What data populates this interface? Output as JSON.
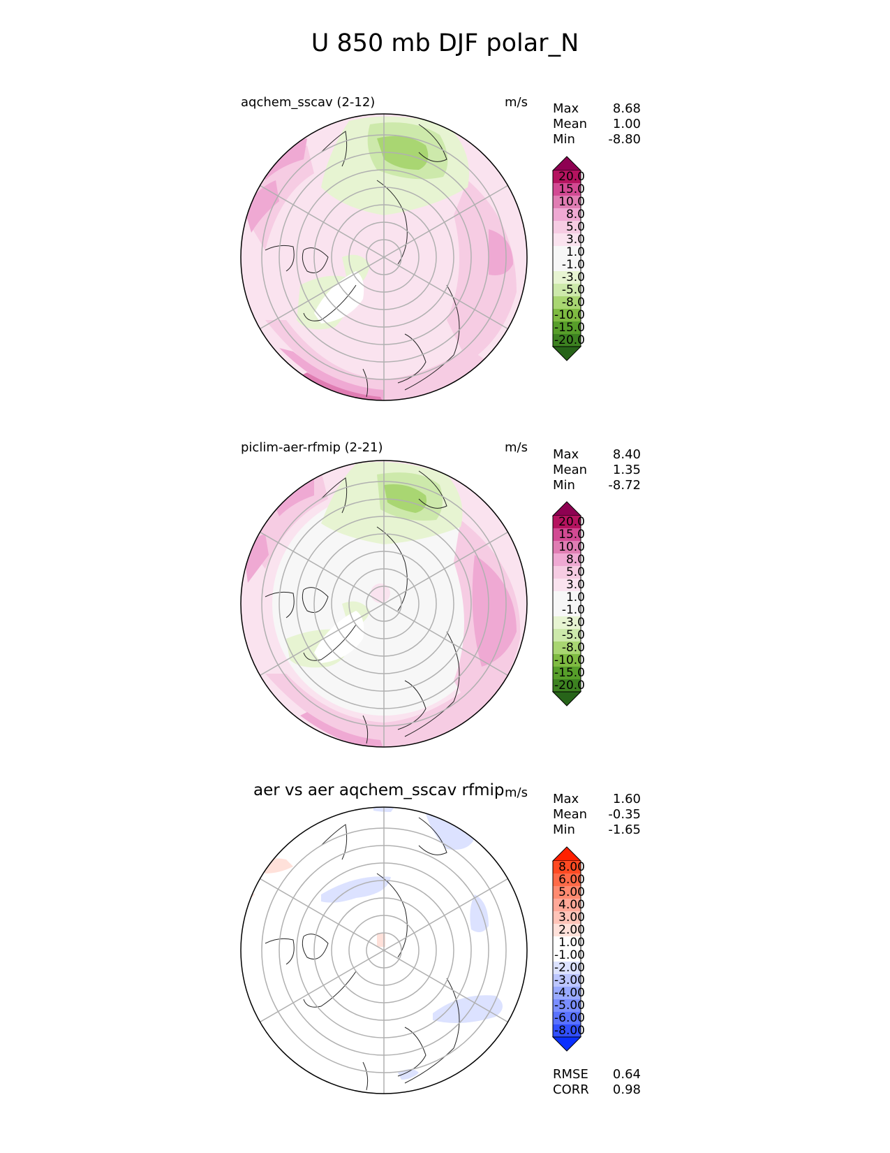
{
  "title": "U 850 mb DJF polar_N",
  "panels": [
    {
      "id": "test",
      "title": "aqchem_sscav (2-12)",
      "units": "m/s",
      "stats": [
        {
          "label": "Max",
          "value": "8.68"
        },
        {
          "label": "Mean",
          "value": "1.00"
        },
        {
          "label": "Min",
          "value": "-8.80"
        }
      ]
    },
    {
      "id": "ref",
      "title": "piclim-aer-rfmip (2-21)",
      "units": "m/s",
      "stats": [
        {
          "label": "Max",
          "value": "8.40"
        },
        {
          "label": "Mean",
          "value": "1.35"
        },
        {
          "label": "Min",
          "value": "-8.72"
        }
      ]
    },
    {
      "id": "diff",
      "title": "aer vs aer aqchem_sscav rfmip",
      "units": "m/s",
      "stats": [
        {
          "label": "Max",
          "value": "1.60"
        },
        {
          "label": "Mean",
          "value": "-0.35"
        },
        {
          "label": "Min",
          "value": "-1.65"
        }
      ],
      "metrics": [
        {
          "label": "RMSE",
          "value": "0.64"
        },
        {
          "label": "CORR",
          "value": "0.98"
        }
      ]
    }
  ],
  "colorbars": {
    "field": {
      "labels": [
        "20.0",
        "15.0",
        "10.0",
        "8.0",
        "5.0",
        "3.0",
        "1.0",
        "-1.0",
        "-3.0",
        "-5.0",
        "-8.0",
        "-10.0",
        "-15.0",
        "-20.0"
      ],
      "colors": [
        "#8e0152",
        "#b5135f",
        "#d24a93",
        "#e07db3",
        "#efa9d3",
        "#f6cce3",
        "#fae3ef",
        "#f7f7f7",
        "#f7f7f7",
        "#e7f4d2",
        "#cde9ab",
        "#a9d672",
        "#7fbb42",
        "#579e2a",
        "#3d8221",
        "#276419"
      ]
    },
    "diff": {
      "labels": [
        "8.00",
        "6.00",
        "5.00",
        "4.00",
        "3.00",
        "2.00",
        "1.00",
        "-1.00",
        "-2.00",
        "-3.00",
        "-4.00",
        "-5.00",
        "-6.00",
        "-8.00"
      ],
      "colors": [
        "#ff2000",
        "#ff4a22",
        "#ff6a48",
        "#ff8a70",
        "#ffa898",
        "#ffc4b8",
        "#ffe1da",
        "#ffffff",
        "#ffffff",
        "#dce2ff",
        "#bcc6ff",
        "#99aaff",
        "#7a8eff",
        "#5a72ff",
        "#3250ff",
        "#0a30ff"
      ]
    }
  }
}
